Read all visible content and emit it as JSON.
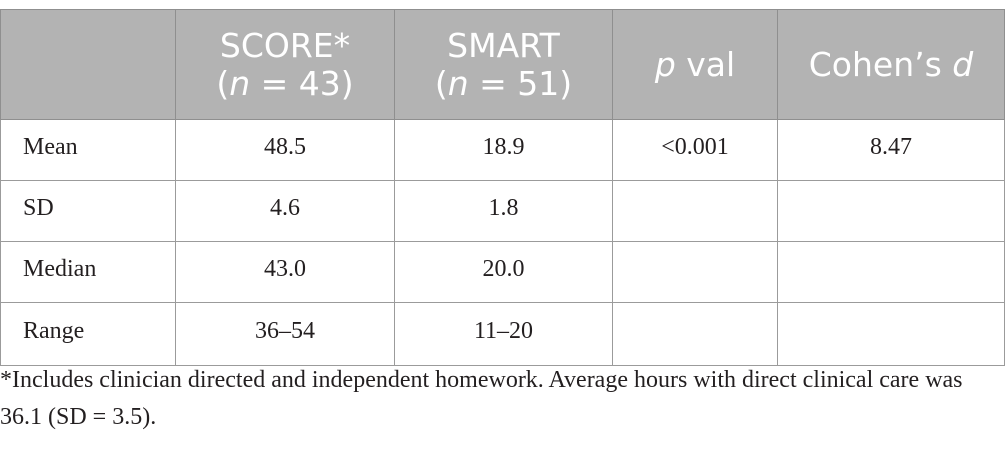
{
  "table": {
    "header": {
      "col1_line1": "SCORE*",
      "col1_n_label": "n",
      "col1_n_rest": " = 43)",
      "col2_line1": "SMART",
      "col2_n_label": "n",
      "col2_n_rest": " = 51)",
      "col3_italic": "p",
      "col3_rest": " val",
      "col4_main": "Cohen’s ",
      "col4_italic": "d",
      "open_paren": "("
    },
    "rows": [
      {
        "label": "Mean",
        "score": "48.5",
        "smart": "18.9",
        "p": "<0.001",
        "d": "8.47"
      },
      {
        "label": "SD",
        "score": "4.6",
        "smart": "1.8",
        "p": "",
        "d": ""
      },
      {
        "label": "Median",
        "score": "43.0",
        "smart": "20.0",
        "p": "",
        "d": ""
      },
      {
        "label": "Range",
        "score": "36–54",
        "smart": "11–20",
        "p": "",
        "d": ""
      }
    ]
  },
  "footnote": "*Includes clinician directed and independent homework. Average hours with direct clinical care was 36.1 (SD = 3.5)."
}
